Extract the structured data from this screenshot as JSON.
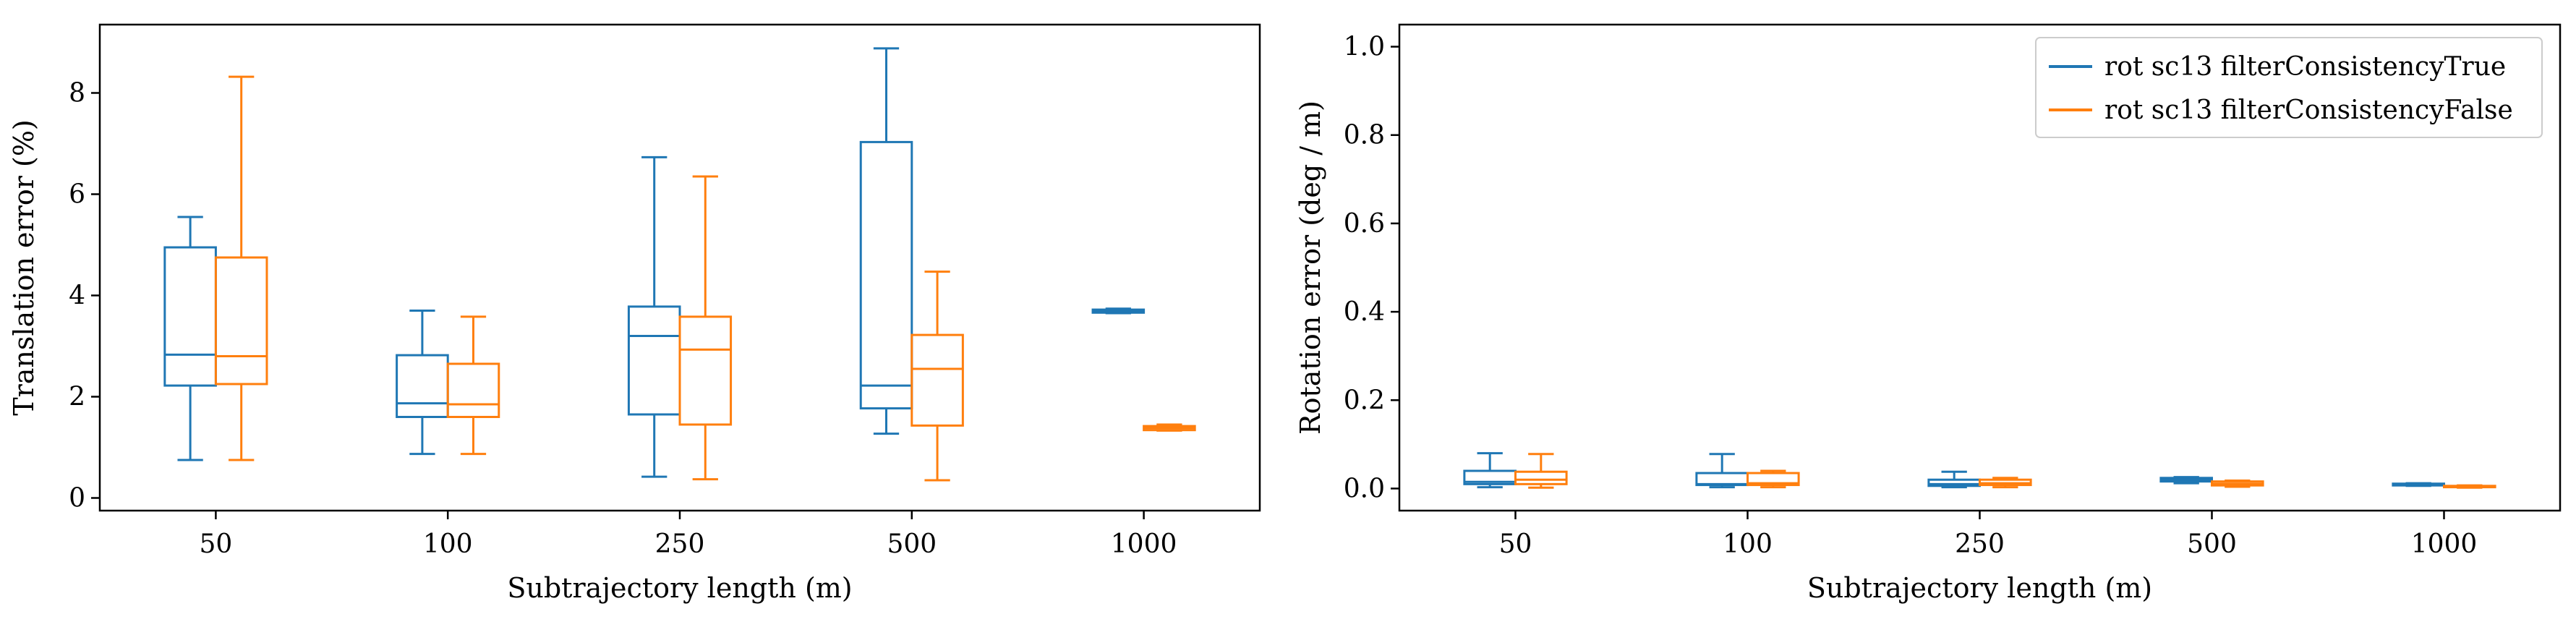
{
  "colors": {
    "series0": "#1f77b4",
    "series1": "#ff7f0e",
    "axes": "#000000",
    "legend_frame": "#cccccc"
  },
  "chart_data": [
    {
      "type": "boxplot",
      "categories": [
        "50",
        "100",
        "250",
        "500",
        "1000"
      ],
      "xlabel": "Subtrajectory length (m)",
      "ylabel": "Translation error (%)",
      "ylim": [
        -0.25,
        9.35
      ],
      "yticks": [
        "0",
        "2",
        "4",
        "6",
        "8"
      ],
      "grid": false,
      "legend": null,
      "series": [
        {
          "boxes": [
            {
              "whislo": 0.75,
              "q1": 2.22,
              "med": 2.83,
              "q3": 4.95,
              "whishi": 5.55
            },
            {
              "whislo": 0.87,
              "q1": 1.6,
              "med": 1.87,
              "q3": 2.82,
              "whishi": 3.7
            },
            {
              "whislo": 0.42,
              "q1": 1.65,
              "med": 3.2,
              "q3": 3.78,
              "whishi": 6.73
            },
            {
              "whislo": 1.27,
              "q1": 1.77,
              "med": 2.22,
              "q3": 7.03,
              "whishi": 8.88
            },
            {
              "whislo": 3.65,
              "q1": 3.66,
              "med": 3.69,
              "q3": 3.72,
              "whishi": 3.74
            }
          ]
        },
        {
          "boxes": [
            {
              "whislo": 0.75,
              "q1": 2.25,
              "med": 2.8,
              "q3": 4.75,
              "whishi": 8.32
            },
            {
              "whislo": 0.87,
              "q1": 1.6,
              "med": 1.85,
              "q3": 2.65,
              "whishi": 3.58
            },
            {
              "whislo": 0.37,
              "q1": 1.45,
              "med": 2.93,
              "q3": 3.58,
              "whishi": 6.35
            },
            {
              "whislo": 0.35,
              "q1": 1.43,
              "med": 2.55,
              "q3": 3.22,
              "whishi": 4.47
            },
            {
              "whislo": 1.33,
              "q1": 1.34,
              "med": 1.38,
              "q3": 1.42,
              "whishi": 1.45
            }
          ]
        }
      ]
    },
    {
      "type": "boxplot",
      "categories": [
        "50",
        "100",
        "250",
        "500",
        "1000"
      ],
      "xlabel": "Subtrajectory length (m)",
      "ylabel": "Rotation error (deg / m)",
      "ylim": [
        -0.05,
        1.05
      ],
      "yticks": [
        "0.0",
        "0.2",
        "0.4",
        "0.6",
        "0.8",
        "1.0"
      ],
      "grid": false,
      "legend": "top-right",
      "series": [
        {
          "name": "rot sc13 filterConsistencyTrue",
          "boxes": [
            {
              "whislo": 0.003,
              "q1": 0.01,
              "med": 0.015,
              "q3": 0.04,
              "whishi": 0.08
            },
            {
              "whislo": 0.003,
              "q1": 0.008,
              "med": 0.01,
              "q3": 0.035,
              "whishi": 0.078
            },
            {
              "whislo": 0.003,
              "q1": 0.006,
              "med": 0.01,
              "q3": 0.02,
              "whishi": 0.038
            },
            {
              "whislo": 0.012,
              "q1": 0.016,
              "med": 0.02,
              "q3": 0.024,
              "whishi": 0.026
            },
            {
              "whislo": 0.006,
              "q1": 0.007,
              "med": 0.009,
              "q3": 0.011,
              "whishi": 0.012
            }
          ]
        },
        {
          "name": "rot sc13 filterConsistencyFalse",
          "boxes": [
            {
              "whislo": 0.002,
              "q1": 0.01,
              "med": 0.02,
              "q3": 0.038,
              "whishi": 0.078
            },
            {
              "whislo": 0.003,
              "q1": 0.008,
              "med": 0.012,
              "q3": 0.035,
              "whishi": 0.04
            },
            {
              "whislo": 0.003,
              "q1": 0.008,
              "med": 0.012,
              "q3": 0.02,
              "whishi": 0.024
            },
            {
              "whislo": 0.004,
              "q1": 0.007,
              "med": 0.011,
              "q3": 0.016,
              "whishi": 0.018
            },
            {
              "whislo": 0.002,
              "q1": 0.003,
              "med": 0.004,
              "q3": 0.006,
              "whishi": 0.007
            }
          ]
        }
      ]
    }
  ]
}
